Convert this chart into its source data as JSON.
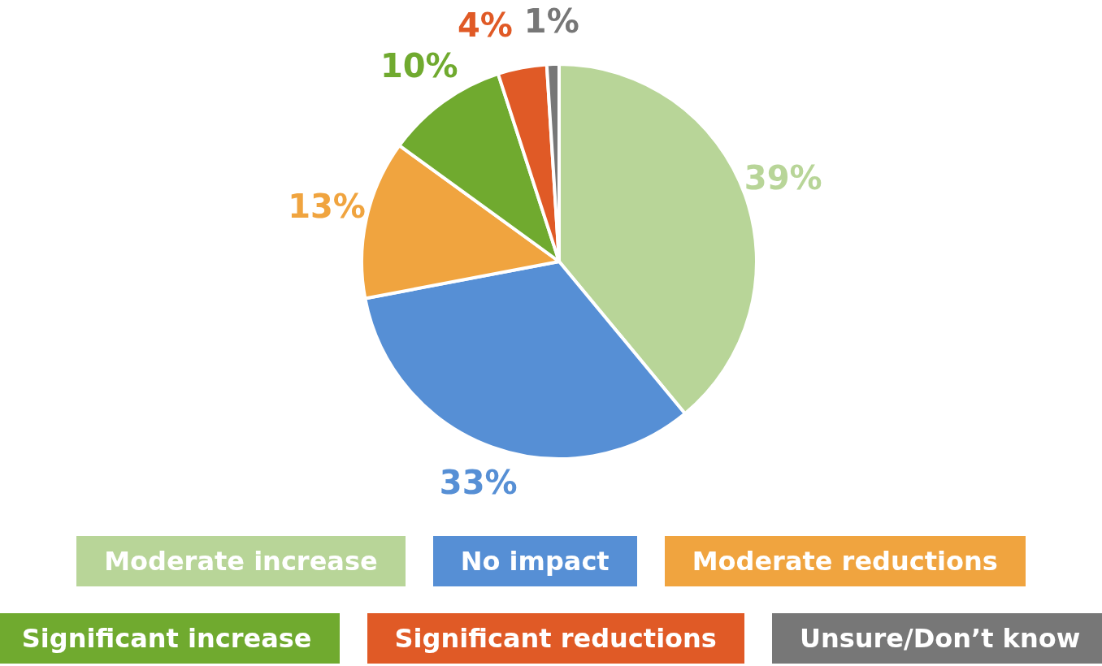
{
  "chart_data": {
    "type": "pie",
    "categories": [
      "Moderate increase",
      "No impact",
      "Moderate reductions",
      "Significant increase",
      "Significant reductions",
      "Unsure/Don’t know"
    ],
    "values": [
      39,
      33,
      13,
      10,
      4,
      1
    ],
    "colors": [
      "#b8d598",
      "#568fd5",
      "#f0a43f",
      "#70aa2f",
      "#e05a26",
      "#777777"
    ],
    "value_labels": [
      "39%",
      "33%",
      "13%",
      "10%",
      "4%",
      "1%"
    ],
    "legend": "bottom"
  }
}
